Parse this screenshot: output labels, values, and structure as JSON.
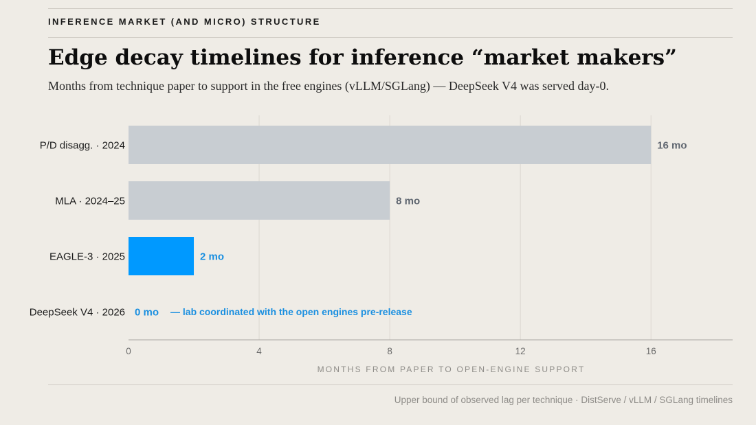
{
  "header": {
    "kicker": "INFERENCE MARKET (AND MICRO) STRUCTURE",
    "title": "Edge decay timelines for inference “market makers”",
    "subtitle": "Months from technique paper to support in the free engines (vLLM/SGLang) — DeepSeek V4 was served day-0."
  },
  "footer": {
    "source": "Upper bound of observed lag per technique · DistServe / vLLM / SGLang timelines"
  },
  "colors": {
    "background": "#efece6",
    "bar_default": "#c8cdd2",
    "bar_highlight": "#0099ff",
    "label_default": "#5f6670",
    "label_highlight": "#1a8fe0",
    "grid": "#dcd8d1",
    "axis": "#a9a6a1"
  },
  "chart_data": {
    "type": "bar",
    "orientation": "horizontal",
    "categories": [
      "P/D disagg. · 2024",
      "MLA · 2024–25",
      "EAGLE-3 · 2025",
      "DeepSeek V4 · 2026"
    ],
    "values": [
      16,
      8,
      2,
      0
    ],
    "value_labels": [
      "16 mo",
      "8 mo",
      "2 mo",
      "0 mo"
    ],
    "highlight": [
      false,
      false,
      true,
      true
    ],
    "annotations": [
      {
        "category": "DeepSeek V4 · 2026",
        "text": "— lab coordinated with the open engines pre-release"
      }
    ],
    "xlabel": "MONTHS FROM PAPER TO OPEN-ENGINE SUPPORT",
    "xticks": [
      0,
      4,
      8,
      12,
      16
    ],
    "xlim": [
      0,
      18.5
    ],
    "grid": true
  }
}
